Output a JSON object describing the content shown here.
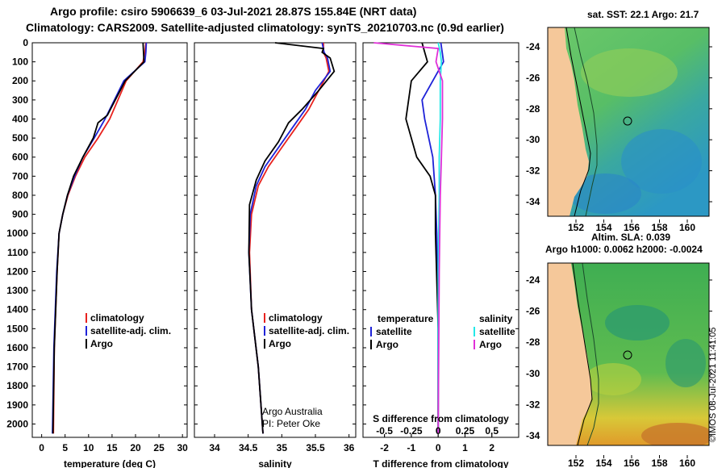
{
  "header": {
    "title_line1": "Argo profile: csiro 5906639_6 03-Jul-2021 28.87S 155.84E (NRT data)",
    "title_line2": "Climatology: CARS2009. Satellite-adjusted climatology: synTS_20210703.nc (0.9d earlier)"
  },
  "depth_axis": {
    "ticks": [
      0,
      100,
      200,
      300,
      400,
      500,
      600,
      700,
      800,
      900,
      1000,
      1100,
      1200,
      1300,
      1400,
      1500,
      1600,
      1700,
      1800,
      1900,
      2000
    ],
    "range": [
      0,
      2070
    ]
  },
  "colors": {
    "climatology": "#e8221e",
    "satellite": "#1e22d8",
    "argo": "#000000",
    "s_satellite": "#22e8e8",
    "s_argo": "#e030d8"
  },
  "chart_data": [
    {
      "type": "line",
      "xlabel": "temperature (deg C)",
      "xlim": [
        -2,
        31
      ],
      "xticks": [
        0,
        5,
        10,
        15,
        20,
        25,
        30
      ],
      "legend": [
        "climatology",
        "satellite-adj. clim.",
        "Argo"
      ],
      "series": [
        {
          "name": "climatology",
          "color": "#e8221e",
          "x": [
            22.2,
            22.0,
            21.6,
            18.0,
            14.5,
            12.0,
            9.2,
            7.2,
            5.6,
            4.5,
            3.7,
            3.3,
            2.7,
            2.5
          ],
          "y": [
            0,
            50,
            100,
            200,
            400,
            500,
            600,
            700,
            800,
            900,
            1000,
            1200,
            1600,
            2050
          ]
        },
        {
          "name": "satellite-adj. clim.",
          "color": "#1e22d8",
          "x": [
            22.3,
            22.2,
            22.0,
            17.5,
            13.5,
            11.2,
            8.8,
            7.0,
            5.5,
            4.5,
            3.7,
            3.2,
            2.6,
            2.3
          ],
          "y": [
            0,
            50,
            100,
            200,
            400,
            500,
            600,
            700,
            800,
            900,
            1000,
            1200,
            1600,
            2050
          ]
        },
        {
          "name": "Argo",
          "color": "#000000",
          "x": [
            21.6,
            21.7,
            21.8,
            17.8,
            14.0,
            12.0,
            11.0,
            8.8,
            6.8,
            5.5,
            4.5,
            3.7,
            3.3,
            2.7,
            2.4
          ],
          "y": [
            0,
            50,
            100,
            200,
            380,
            420,
            500,
            600,
            700,
            800,
            900,
            1000,
            1200,
            1600,
            2050
          ]
        }
      ]
    },
    {
      "type": "line",
      "xlabel": "salinity",
      "xlim": [
        33.7,
        36.1
      ],
      "xticks": [
        34,
        34.5,
        35,
        35.5,
        36
      ],
      "xtick_labels": [
        "34",
        "34.5",
        "35",
        "35.5",
        "36"
      ],
      "legend": [
        "climatology",
        "satellite-adj. clim.",
        "Argo"
      ],
      "credit_line1": "Argo Australia",
      "credit_line2": "PI: Peter Oke",
      "series": [
        {
          "name": "climatology",
          "color": "#e8221e",
          "x": [
            35.62,
            35.62,
            35.66,
            35.7,
            35.55,
            35.4,
            35.2,
            35.0,
            34.8,
            34.65,
            34.55,
            34.52,
            34.55,
            34.65,
            34.72
          ],
          "y": [
            0,
            50,
            80,
            150,
            250,
            350,
            450,
            550,
            650,
            750,
            900,
            1100,
            1400,
            1700,
            2050
          ]
        },
        {
          "name": "satellite-adj. clim.",
          "color": "#1e22d8",
          "x": [
            35.6,
            35.63,
            35.68,
            35.72,
            35.5,
            35.35,
            35.15,
            34.95,
            34.75,
            34.62,
            34.53,
            34.51,
            34.55,
            34.65,
            34.72
          ],
          "y": [
            0,
            50,
            80,
            150,
            250,
            350,
            450,
            550,
            650,
            750,
            900,
            1100,
            1400,
            1700,
            2050
          ]
        },
        {
          "name": "Argo",
          "color": "#000000",
          "x": [
            34.9,
            35.62,
            35.6,
            35.72,
            35.78,
            35.55,
            35.3,
            35.1,
            34.95,
            34.75,
            34.62,
            34.52,
            34.51,
            34.55,
            34.65,
            34.72
          ],
          "y": [
            0,
            30,
            50,
            80,
            150,
            250,
            350,
            420,
            520,
            620,
            720,
            850,
            1100,
            1400,
            1700,
            2050
          ]
        }
      ]
    },
    {
      "type": "line",
      "xlabel": "T difference from climatology",
      "xlim": [
        -2.8,
        3.0
      ],
      "xticks": [
        -2,
        -1,
        0,
        1,
        2
      ],
      "s_label": "S difference from climatology",
      "s_xlim": [
        -0.7,
        0.75
      ],
      "s_xticks": [
        -0.5,
        -0.25,
        0,
        0.25,
        0.5
      ],
      "s_xtick_labels": [
        "-0.5",
        "-0.25",
        "0",
        "0.25",
        "0.5"
      ],
      "legend_headers": [
        "temperature",
        "salinity"
      ],
      "legend_left": [
        "satellite",
        "Argo"
      ],
      "legend_right": [
        "satellite",
        "Argo"
      ],
      "series": [
        {
          "name": "T satellite",
          "color": "#1e22d8",
          "axis": "t",
          "x": [
            0.1,
            0.15,
            0.2,
            -0.2,
            -0.6,
            -0.5,
            -0.35,
            -0.2,
            -0.1,
            -0.05,
            0.0,
            0.0
          ],
          "y": [
            0,
            50,
            100,
            200,
            300,
            400,
            500,
            600,
            800,
            1000,
            1500,
            2050
          ]
        },
        {
          "name": "T Argo",
          "color": "#000000",
          "axis": "t",
          "x": [
            -0.6,
            -0.5,
            -0.4,
            -1.0,
            -1.2,
            -1.0,
            -0.8,
            -0.3,
            -0.1,
            -0.1,
            0.0,
            0.0
          ],
          "y": [
            0,
            50,
            100,
            200,
            400,
            500,
            600,
            700,
            800,
            1000,
            1500,
            2050
          ]
        },
        {
          "name": "S satellite",
          "color": "#22e8e8",
          "axis": "s",
          "x": [
            0.0,
            0.02,
            0.03,
            0.02,
            0.02,
            0.01,
            0.01,
            0.0,
            0.0
          ],
          "y": [
            0,
            50,
            100,
            200,
            400,
            600,
            800,
            1200,
            2050
          ]
        },
        {
          "name": "S Argo",
          "color": "#e030d8",
          "axis": "s",
          "x": [
            -0.6,
            0.0,
            -0.02,
            0.04,
            0.04,
            0.03,
            0.02,
            0.01,
            0.0
          ],
          "y": [
            0,
            30,
            100,
            200,
            400,
            600,
            800,
            1200,
            2050
          ]
        }
      ]
    }
  ],
  "maps": {
    "sst": {
      "title": "sat. SST: 22.1 Argo: 21.7",
      "lat_ticks": [
        "-24",
        "-26",
        "-28",
        "-30",
        "-32",
        "-34"
      ],
      "lon_ticks": [
        "152",
        "154",
        "156",
        "158",
        "160"
      ]
    },
    "sla": {
      "title_line1": "Altim. SLA: 0.039",
      "title_line2": "Argo h1000: 0.0062 h2000: -0.0024",
      "lat_ticks": [
        "-24",
        "-26",
        "-28",
        "-30",
        "-32",
        "-34"
      ],
      "lon_ticks": [
        "152",
        "154",
        "156",
        "158",
        "160"
      ]
    }
  },
  "footer": {
    "stamp": "©IMOS 08-Jul-2021 11:41:05"
  }
}
